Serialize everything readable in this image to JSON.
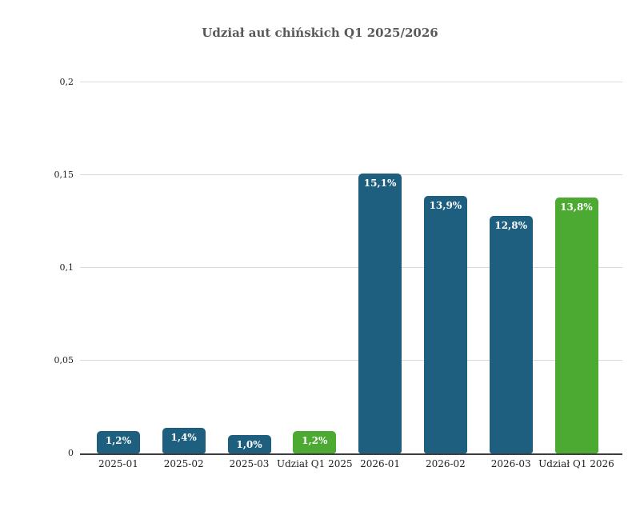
{
  "title": "Udział aut chińskich Q1 2025/2026",
  "colors": {
    "bar_month": "#1e5f80",
    "bar_quarter": "#4caa33",
    "grid": "#d9d9d9",
    "axis": "#3d3d3d",
    "title_text": "#595959",
    "tick_text": "#1f1f1f",
    "value_label_text": "#ffffff",
    "background": "#ffffff"
  },
  "chart_data": {
    "type": "bar",
    "title": "Udział aut chińskich Q1 2025/2026",
    "categories": [
      "2025-01",
      "2025-02",
      "2025-03",
      "Udział Q1 2025",
      "2026-01",
      "2026-02",
      "2026-03",
      "Udział Q1 2026"
    ],
    "values": [
      0.012,
      0.014,
      0.01,
      0.012,
      0.151,
      0.139,
      0.128,
      0.138
    ],
    "value_labels": [
      "1,2%",
      "1,4%",
      "1,0%",
      "1,2%",
      "15,1%",
      "13,9%",
      "12,8%",
      "13,8%"
    ],
    "bar_roles": [
      "month",
      "month",
      "month",
      "quarter_avg",
      "month",
      "month",
      "month",
      "quarter_avg"
    ],
    "y_ticks": [
      {
        "value": 0,
        "label": "0"
      },
      {
        "value": 0.05,
        "label": "0,05"
      },
      {
        "value": 0.1,
        "label": "0,1"
      },
      {
        "value": 0.15,
        "label": "0,15"
      },
      {
        "value": 0.2,
        "label": "0,2"
      }
    ],
    "ylim": [
      0,
      0.2
    ],
    "xlabel": "",
    "ylabel": "",
    "grid": true,
    "legend": "none",
    "value_label_position": "inside-top"
  }
}
